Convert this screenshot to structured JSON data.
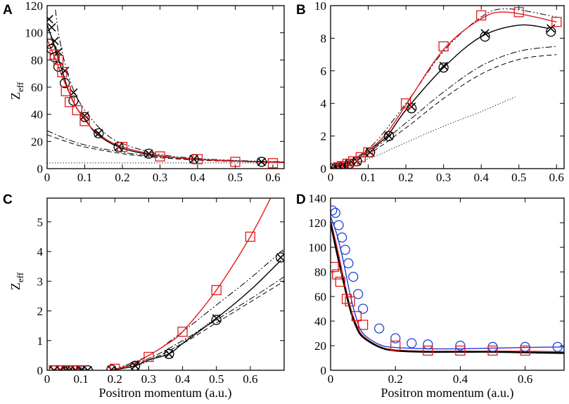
{
  "figure": {
    "panels": [
      "A",
      "B",
      "C",
      "D"
    ],
    "x_label": "Positron momentum (a.u.)",
    "y_label_main": "Z",
    "y_label_sub": "eff",
    "colors": {
      "red": "#e41a1c",
      "blue": "#1f3fd6",
      "black": "#000000"
    }
  },
  "chart_data": [
    {
      "id": "A",
      "type": "line",
      "xlim": [
        0,
        0.63
      ],
      "ylim": [
        0,
        120
      ],
      "xticks": [
        0,
        0.1,
        0.2,
        0.3,
        0.4,
        0.5,
        0.6
      ],
      "xtick_labels": [
        "0",
        "0.1",
        "0.2",
        "0.3",
        "0.4",
        "0.5",
        "0.6"
      ],
      "yticks": [
        0,
        20,
        40,
        60,
        80,
        100,
        120
      ],
      "ytick_labels": [
        "0",
        "20",
        "40",
        "60",
        "80",
        "100",
        "120"
      ],
      "xlabel": "",
      "ylabel": "Zeff",
      "series": [
        {
          "name": "dotted",
          "color": "#000000",
          "style": "dotted",
          "width": 1,
          "x": [
            0,
            0.63
          ],
          "y": [
            4.2,
            4.2
          ]
        },
        {
          "name": "dashed",
          "color": "#000000",
          "style": "dashed",
          "width": 1,
          "x": [
            0,
            0.05,
            0.1,
            0.2,
            0.3,
            0.4,
            0.5,
            0.63
          ],
          "y": [
            25,
            20,
            16,
            11,
            8,
            6.3,
            5.3,
            4.5
          ]
        },
        {
          "name": "dash-dot",
          "color": "#000000",
          "style": "dashdot",
          "width": 1,
          "x": [
            0,
            0.05,
            0.1,
            0.2,
            0.3,
            0.4,
            0.5,
            0.63
          ],
          "y": [
            28,
            22,
            17.5,
            12,
            8.7,
            6.8,
            5.7,
            4.8
          ]
        },
        {
          "name": "dash-dot-dot",
          "color": "#000000",
          "style": "dashdotdot",
          "width": 1,
          "x": [
            0.022,
            0.03,
            0.04,
            0.05,
            0.07,
            0.1,
            0.15,
            0.2,
            0.3,
            0.4,
            0.5,
            0.63
          ],
          "y": [
            117,
            100,
            86,
            75,
            58,
            43,
            27,
            18.5,
            10.5,
            7.5,
            6,
            5
          ]
        },
        {
          "name": "black solid",
          "color": "#000000",
          "style": "solid",
          "width": 1.4,
          "x": [
            0,
            0.02,
            0.04,
            0.06,
            0.08,
            0.1,
            0.13,
            0.19,
            0.27,
            0.39,
            0.57,
            0.63
          ],
          "y": [
            106,
            90,
            72,
            55,
            44,
            37,
            26,
            16,
            10.5,
            7,
            5,
            4.7
          ]
        },
        {
          "name": "red solid",
          "color": "#e41a1c",
          "style": "solid",
          "width": 1.4,
          "x": [
            0,
            0.02,
            0.04,
            0.06,
            0.08,
            0.1,
            0.13,
            0.19,
            0.3,
            0.4,
            0.5,
            0.63
          ],
          "y": [
            95,
            82,
            68,
            55,
            44,
            36,
            27,
            17,
            9.5,
            7,
            5.5,
            4.5
          ]
        },
        {
          "name": "black circles",
          "color": "#000000",
          "marker": "circle",
          "x": [
            0.005,
            0.012,
            0.02,
            0.03,
            0.047,
            0.07,
            0.1,
            0.137,
            0.19,
            0.27,
            0.39,
            0.57
          ],
          "y": [
            92,
            88,
            82,
            75,
            63,
            50,
            38,
            26,
            16,
            11,
            7,
            5
          ]
        },
        {
          "name": "black crosses",
          "color": "#000000",
          "marker": "x",
          "x": [
            0.005,
            0.012,
            0.02,
            0.03,
            0.047,
            0.07,
            0.1,
            0.137,
            0.19,
            0.27,
            0.39,
            0.57
          ],
          "y": [
            110,
            104,
            94,
            86,
            72,
            56,
            39,
            26,
            16,
            11,
            7,
            5
          ]
        },
        {
          "name": "red squares",
          "color": "#e41a1c",
          "marker": "square",
          "x": [
            0.02,
            0.03,
            0.04,
            0.05,
            0.06,
            0.08,
            0.1,
            0.2,
            0.3,
            0.4,
            0.5,
            0.6
          ],
          "y": [
            84,
            80,
            71,
            57,
            49,
            43,
            35,
            16,
            9,
            7,
            5,
            4
          ]
        }
      ]
    },
    {
      "id": "B",
      "type": "line",
      "xlim": [
        0,
        0.62
      ],
      "ylim": [
        0,
        10
      ],
      "xticks": [
        0,
        0.1,
        0.2,
        0.3,
        0.4,
        0.5,
        0.6
      ],
      "xtick_labels": [
        "0",
        "0.1",
        "0.2",
        "0.3",
        "0.4",
        "0.5",
        "0.6"
      ],
      "yticks": [
        0,
        2,
        4,
        6,
        8,
        10
      ],
      "ytick_labels": [
        "0",
        "2",
        "4",
        "6",
        "8",
        "10"
      ],
      "xlabel": "",
      "ylabel": "",
      "series": [
        {
          "name": "dotted",
          "color": "#000000",
          "style": "dotted",
          "width": 1,
          "x": [
            0,
            0.1,
            0.2,
            0.3,
            0.4,
            0.49
          ],
          "y": [
            0,
            0.6,
            1.6,
            2.6,
            3.5,
            4.4
          ]
        },
        {
          "name": "dashed",
          "color": "#000000",
          "style": "dashed",
          "width": 1,
          "x": [
            0,
            0.1,
            0.2,
            0.3,
            0.4,
            0.5,
            0.6
          ],
          "y": [
            0,
            0.9,
            2.5,
            4.3,
            5.8,
            6.7,
            7.0
          ]
        },
        {
          "name": "dash-dot",
          "color": "#000000",
          "style": "dashdot",
          "width": 1,
          "x": [
            0,
            0.1,
            0.2,
            0.3,
            0.4,
            0.5,
            0.6
          ],
          "y": [
            0,
            1.0,
            2.8,
            4.7,
            6.3,
            7.2,
            7.5
          ]
        },
        {
          "name": "dash-dot-dot",
          "color": "#000000",
          "style": "dashdotdot",
          "width": 1,
          "x": [
            0,
            0.1,
            0.2,
            0.3,
            0.4,
            0.47,
            0.6
          ],
          "y": [
            0,
            1.2,
            4.0,
            7.2,
            9.3,
            9.8,
            9.3
          ]
        },
        {
          "name": "black solid",
          "color": "#000000",
          "style": "solid",
          "width": 1.4,
          "x": [
            0,
            0.05,
            0.1,
            0.15,
            0.2,
            0.3,
            0.4,
            0.5,
            0.58
          ],
          "y": [
            0,
            0.4,
            1.1,
            2.0,
            3.6,
            6.2,
            8.1,
            8.8,
            8.6
          ]
        },
        {
          "name": "red solid",
          "color": "#e41a1c",
          "style": "solid",
          "width": 1.4,
          "x": [
            0,
            0.05,
            0.1,
            0.15,
            0.2,
            0.3,
            0.4,
            0.47,
            0.6
          ],
          "y": [
            0,
            0.4,
            1.1,
            2.2,
            3.9,
            7.3,
            9.2,
            9.6,
            9.0
          ]
        },
        {
          "name": "black circles",
          "color": "#000000",
          "marker": "circle",
          "x": [
            0.005,
            0.015,
            0.025,
            0.035,
            0.05,
            0.07,
            0.105,
            0.155,
            0.215,
            0.3,
            0.41,
            0.585
          ],
          "y": [
            0.01,
            0.05,
            0.1,
            0.15,
            0.3,
            0.45,
            1.0,
            2.0,
            3.7,
            6.2,
            8.1,
            8.4
          ]
        },
        {
          "name": "black crosses",
          "color": "#000000",
          "marker": "x",
          "x": [
            0.005,
            0.015,
            0.025,
            0.035,
            0.05,
            0.07,
            0.105,
            0.155,
            0.215,
            0.3,
            0.41,
            0.585
          ],
          "y": [
            0.01,
            0.05,
            0.1,
            0.15,
            0.3,
            0.45,
            1.0,
            2.0,
            3.8,
            6.3,
            8.3,
            8.6
          ]
        },
        {
          "name": "red squares",
          "color": "#e41a1c",
          "marker": "square",
          "x": [
            0.01,
            0.02,
            0.03,
            0.045,
            0.06,
            0.08,
            0.1,
            0.2,
            0.3,
            0.4,
            0.5,
            0.6
          ],
          "y": [
            0.02,
            0.08,
            0.15,
            0.3,
            0.45,
            0.7,
            1.0,
            4.0,
            7.5,
            9.4,
            9.6,
            9.0
          ]
        }
      ]
    },
    {
      "id": "C",
      "type": "line",
      "xlim": [
        0,
        0.7
      ],
      "ylim": [
        0,
        5.8
      ],
      "xticks": [
        0,
        0.1,
        0.2,
        0.3,
        0.4,
        0.5,
        0.6
      ],
      "xtick_labels": [
        "0",
        "0.1",
        "0.2",
        "0.3",
        "0.4",
        "0.5",
        "0.6"
      ],
      "yticks": [
        0,
        1,
        2,
        3,
        4,
        5
      ],
      "ytick_labels": [
        "0",
        "1",
        "2",
        "3",
        "4",
        "5"
      ],
      "xlabel": "Positron momentum (a.u.)",
      "ylabel": "Zeff",
      "series": [
        {
          "name": "dotted",
          "color": "#000000",
          "style": "dotted",
          "width": 1,
          "x": [
            0.2,
            0.3,
            0.4,
            0.5
          ],
          "y": [
            0,
            0.3,
            0.95,
            1.8
          ]
        },
        {
          "name": "dashed",
          "color": "#000000",
          "style": "dashed",
          "width": 1,
          "x": [
            0.19,
            0.3,
            0.4,
            0.5,
            0.6,
            0.7
          ],
          "y": [
            0,
            0.35,
            0.9,
            1.6,
            2.3,
            3.0
          ]
        },
        {
          "name": "dash-dot",
          "color": "#000000",
          "style": "dashdot",
          "width": 1,
          "x": [
            0.19,
            0.3,
            0.4,
            0.5,
            0.6,
            0.7
          ],
          "y": [
            0,
            0.4,
            1.0,
            1.7,
            2.4,
            3.15
          ]
        },
        {
          "name": "dash-dot-dot",
          "color": "#000000",
          "style": "dashdotdot",
          "width": 1,
          "x": [
            0.19,
            0.3,
            0.4,
            0.5,
            0.6,
            0.7
          ],
          "y": [
            0,
            0.5,
            1.3,
            2.2,
            3.1,
            4.1
          ]
        },
        {
          "name": "black solid",
          "color": "#000000",
          "style": "solid",
          "width": 1.4,
          "x": [
            0.19,
            0.26,
            0.3,
            0.36,
            0.4,
            0.5,
            0.6,
            0.69
          ],
          "y": [
            0,
            0.15,
            0.35,
            0.55,
            0.9,
            1.75,
            2.7,
            3.7
          ]
        },
        {
          "name": "red solid",
          "color": "#e41a1c",
          "style": "solid",
          "width": 1.4,
          "x": [
            0.19,
            0.25,
            0.3,
            0.35,
            0.4,
            0.5,
            0.6,
            0.66
          ],
          "y": [
            0,
            0.2,
            0.5,
            0.85,
            1.3,
            2.7,
            4.5,
            5.8
          ]
        },
        {
          "name": "black circles",
          "color": "#000000",
          "marker": "circle",
          "x": [
            0.02,
            0.04,
            0.055,
            0.065,
            0.085,
            0.1,
            0.12,
            0.19,
            0.26,
            0.36,
            0.5,
            0.69
          ],
          "y": [
            0,
            0,
            0,
            0,
            0,
            0,
            0,
            0.02,
            0.15,
            0.55,
            1.7,
            3.8
          ]
        },
        {
          "name": "black crosses",
          "color": "#000000",
          "marker": "x",
          "x": [
            0.02,
            0.04,
            0.055,
            0.065,
            0.085,
            0.1,
            0.12,
            0.19,
            0.26,
            0.36,
            0.5,
            0.69
          ],
          "y": [
            0,
            0,
            0,
            0,
            0,
            0,
            0,
            0.02,
            0.15,
            0.55,
            1.75,
            3.8
          ]
        },
        {
          "name": "red squares",
          "color": "#e41a1c",
          "marker": "square",
          "x": [
            0.02,
            0.04,
            0.06,
            0.08,
            0.1,
            0.2,
            0.3,
            0.4,
            0.5,
            0.6
          ],
          "y": [
            0,
            0,
            0,
            0,
            0,
            0.05,
            0.45,
            1.3,
            2.7,
            4.5
          ]
        }
      ]
    },
    {
      "id": "D",
      "type": "line",
      "xlim": [
        0,
        0.72
      ],
      "ylim": [
        0,
        140
      ],
      "xticks": [
        0,
        0.2,
        0.4,
        0.6
      ],
      "xtick_labels": [
        "0",
        "0.2",
        "0.4",
        "0.6"
      ],
      "yticks": [
        0,
        20,
        40,
        60,
        80,
        100,
        120,
        140
      ],
      "ytick_labels": [
        "0",
        "20",
        "40",
        "60",
        "80",
        "100",
        "120",
        "140"
      ],
      "xlabel": "Positron momentum (a.u.)",
      "ylabel": "",
      "series": [
        {
          "name": "blue solid",
          "color": "#1f3fd6",
          "style": "solid",
          "width": 1.4,
          "x": [
            0,
            0.02,
            0.04,
            0.06,
            0.08,
            0.1,
            0.15,
            0.2,
            0.3,
            0.4,
            0.5,
            0.6,
            0.72
          ],
          "y": [
            125,
            110,
            88,
            62,
            42,
            30,
            21,
            18.5,
            17.5,
            17.5,
            18,
            18.5,
            19
          ]
        },
        {
          "name": "red solid",
          "color": "#e41a1c",
          "style": "solid",
          "width": 1.4,
          "x": [
            0,
            0.02,
            0.04,
            0.06,
            0.08,
            0.1,
            0.15,
            0.2,
            0.3,
            0.4,
            0.5,
            0.6,
            0.72
          ],
          "y": [
            122,
            100,
            75,
            52,
            37,
            28,
            19.5,
            16.5,
            15.5,
            15.5,
            15.5,
            15.5,
            15
          ]
        },
        {
          "name": "black thick",
          "color": "#000000",
          "style": "solid",
          "width": 2.4,
          "x": [
            0,
            0.02,
            0.04,
            0.06,
            0.08,
            0.1,
            0.15,
            0.2,
            0.3,
            0.4,
            0.5,
            0.6,
            0.72
          ],
          "y": [
            120,
            95,
            72,
            50,
            35,
            27,
            19,
            16,
            15,
            15,
            15,
            14.5,
            14
          ]
        },
        {
          "name": "blue circles",
          "color": "#1f3fd6",
          "marker": "circle",
          "x": [
            0.005,
            0.015,
            0.025,
            0.035,
            0.045,
            0.055,
            0.07,
            0.085,
            0.1,
            0.15,
            0.2,
            0.25,
            0.3,
            0.4,
            0.5,
            0.6,
            0.7
          ],
          "y": [
            130,
            128,
            118,
            108,
            98,
            87,
            76,
            62,
            50,
            34,
            26,
            22,
            21,
            20,
            19,
            19,
            19
          ]
        },
        {
          "name": "red squares",
          "color": "#e41a1c",
          "marker": "square",
          "x": [
            0.01,
            0.02,
            0.03,
            0.05,
            0.06,
            0.08,
            0.1,
            0.2,
            0.3,
            0.4,
            0.5,
            0.6
          ],
          "y": [
            84,
            78,
            72,
            58,
            56,
            44,
            37,
            20,
            16,
            16,
            16,
            16
          ]
        }
      ]
    }
  ]
}
